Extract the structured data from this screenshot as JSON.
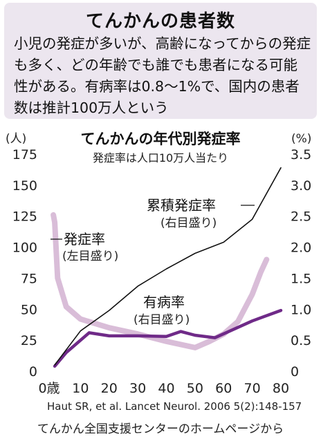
{
  "lead": {
    "title": "てんかんの患者数",
    "body": "小児の発症が多いが、高齢になってからの発症も多く、どの年齢でも誰でも患者になる可能性がある。有病率は0.8～1%で、国内の患者数は推計100万人という"
  },
  "chart_data": {
    "type": "line",
    "title": "てんかんの年代別発症率",
    "subtitle": "発症率は人口10万人当たり",
    "left_unit": "(人)",
    "right_unit": "(%)",
    "x_ticks": [
      "0歳",
      "10",
      "20",
      "30",
      "40",
      "50",
      "60",
      "70",
      "80"
    ],
    "left_ticks": [
      "0",
      "25",
      "50",
      "75",
      "100",
      "125",
      "150",
      "175"
    ],
    "right_ticks": [
      "0",
      "0.5",
      "1.0",
      "1.5",
      "2.0",
      "2.5",
      "3.0",
      "3.5"
    ],
    "xlim": [
      0,
      80
    ],
    "ylim_left": [
      0,
      175
    ],
    "ylim_right": [
      0,
      3.5
    ],
    "grid": false,
    "series": [
      {
        "name": "発症率",
        "name_note": "(左目盛り)",
        "axis": "left",
        "color": "#d9bdd8",
        "points": [
          [
            0.5,
            126
          ],
          [
            1,
            120
          ],
          [
            2,
            75
          ],
          [
            5,
            52
          ],
          [
            10,
            42
          ],
          [
            20,
            35
          ],
          [
            30,
            30
          ],
          [
            40,
            24
          ],
          [
            50,
            19
          ],
          [
            55,
            24
          ],
          [
            60,
            30
          ],
          [
            65,
            40
          ],
          [
            70,
            62
          ],
          [
            73,
            80
          ],
          [
            75,
            90
          ]
        ]
      },
      {
        "name": "有病率",
        "name_note": "(右目盛り)",
        "axis": "right",
        "color": "#6f2a88",
        "points": [
          [
            1,
            0.08
          ],
          [
            5,
            0.3
          ],
          [
            13,
            0.62
          ],
          [
            20,
            0.57
          ],
          [
            30,
            0.57
          ],
          [
            40,
            0.56
          ],
          [
            45,
            0.64
          ],
          [
            50,
            0.58
          ],
          [
            57,
            0.54
          ],
          [
            70,
            0.81
          ],
          [
            80,
            0.98
          ]
        ]
      },
      {
        "name": "累積発症率",
        "name_note": "(右目盛り)",
        "axis": "right",
        "color": "#111111",
        "points": [
          [
            1,
            0.1
          ],
          [
            10,
            0.65
          ],
          [
            20,
            0.98
          ],
          [
            30,
            1.37
          ],
          [
            40,
            1.65
          ],
          [
            50,
            1.9
          ],
          [
            60,
            2.08
          ],
          [
            70,
            2.45
          ],
          [
            80,
            3.28
          ]
        ]
      }
    ]
  },
  "source_text": "Haut SR, et al. Lancet Neurol. 2006 5(2):148-157",
  "credit_text": "てんかん全国支援センターのホームページから"
}
